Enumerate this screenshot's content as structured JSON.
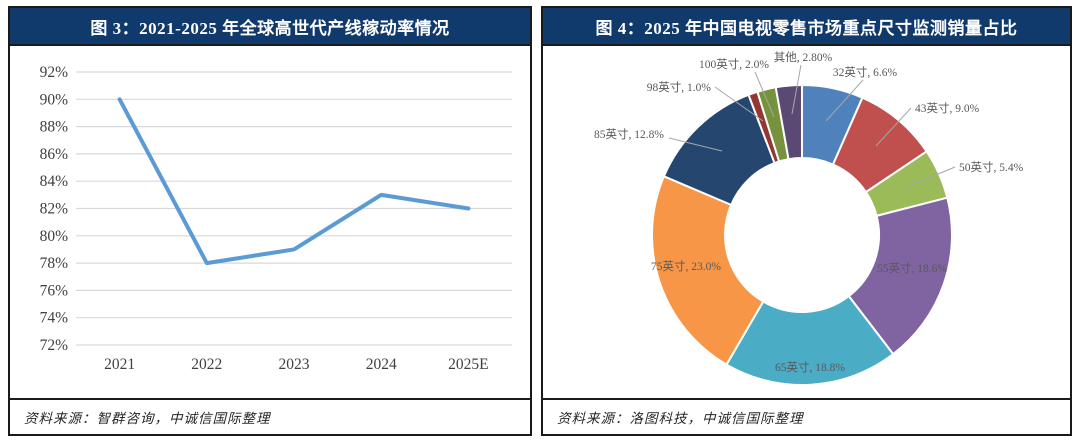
{
  "panels": {
    "left": {
      "title": "图 3：2021-2025 年全球高世代产线稼动率情况",
      "source": "资料来源：智群咨询，中诚信国际整理"
    },
    "right": {
      "title": "图 4：2025 年中国电视零售市场重点尺寸监测销量占比",
      "source": "资料来源：洛图科技，中诚信国际整理"
    }
  },
  "colors": {
    "header_bg": "#10396c",
    "header_text": "#ffffff",
    "panel_border": "#1a1a1a",
    "grid_line": "#d9d9d9",
    "axis_text": "#404040",
    "line_series": "#5b9bd5",
    "donut_label_text": "#595959",
    "leader_line": "#a6a6a6",
    "slice_separator": "#ffffff"
  },
  "chart_data": [
    {
      "type": "line",
      "title": "2021-2025 年全球高世代产线稼动率情况",
      "categories": [
        "2021",
        "2022",
        "2023",
        "2024",
        "2025E"
      ],
      "values": [
        90,
        78,
        79,
        83,
        82
      ],
      "unit": "%",
      "xlabel": "",
      "ylabel": "",
      "ylim": [
        72,
        92
      ],
      "ytick_step": 2,
      "ytick_labels": [
        "92%",
        "90%",
        "88%",
        "86%",
        "84%",
        "82%",
        "80%",
        "78%",
        "76%",
        "74%",
        "72%"
      ],
      "grid": true,
      "legend_position": "none",
      "line_color": "#5b9bd5"
    },
    {
      "type": "pie",
      "subtype": "donut",
      "title": "2025 年中国电视零售市场重点尺寸监测销量占比",
      "start_angle_deg": 0,
      "direction": "clockwise",
      "legend_position": "none",
      "slices": [
        {
          "label": "32英寸",
          "value": 6.6,
          "value_text": "6.6%",
          "color": "#4f81bd"
        },
        {
          "label": "43英寸",
          "value": 9.0,
          "value_text": "9.0%",
          "color": "#c0504d"
        },
        {
          "label": "50英寸",
          "value": 5.4,
          "value_text": "5.4%",
          "color": "#9bbb59"
        },
        {
          "label": "55英寸",
          "value": 18.6,
          "value_text": "18.6%",
          "color": "#8064a2"
        },
        {
          "label": "65英寸",
          "value": 18.8,
          "value_text": "18.8%",
          "color": "#4bacc6"
        },
        {
          "label": "75英寸",
          "value": 23.0,
          "value_text": "23.0%",
          "color": "#f79646"
        },
        {
          "label": "85英寸",
          "value": 12.8,
          "value_text": "12.8%",
          "color": "#25476f"
        },
        {
          "label": "98英寸",
          "value": 1.0,
          "value_text": "1.0%",
          "color": "#943634"
        },
        {
          "label": "100英寸",
          "value": 2.0,
          "value_text": "2.0%",
          "color": "#76923c"
        },
        {
          "label": "其他",
          "value": 2.8,
          "value_text": "2.80%",
          "color": "#5a4a73"
        }
      ]
    }
  ]
}
